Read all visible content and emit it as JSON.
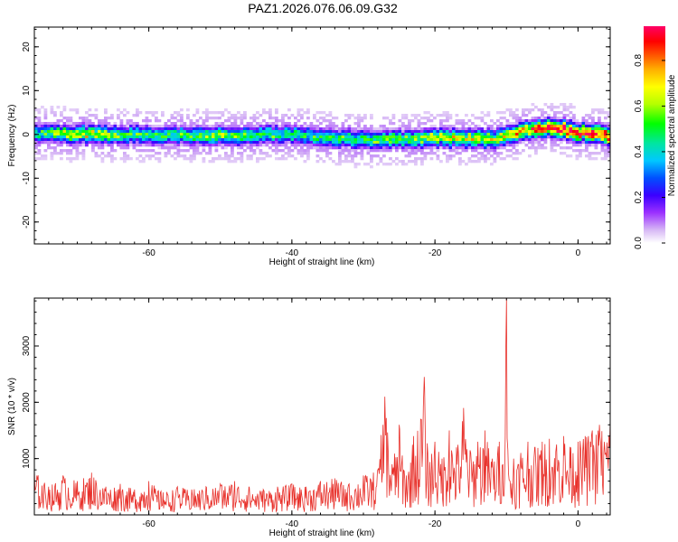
{
  "figure_title": "PAZ1.2026.076.06.09.G32",
  "chart_data": [
    {
      "type": "heatmap",
      "title": "",
      "xlabel": "Height of straight line (km)",
      "ylabel": "Frequency (Hz)",
      "xlim": [
        -76,
        4.5
      ],
      "ylim": [
        -25,
        24.5
      ],
      "xticks": [
        -60,
        -40,
        -20,
        0
      ],
      "yticks": [
        -20,
        -10,
        0,
        10,
        20
      ],
      "colorbar": {
        "label": "Normalized spectral amplitude",
        "range": [
          0,
          0.95
        ],
        "ticks": [
          0.0,
          0.2,
          0.4,
          0.6,
          0.8
        ],
        "tick_labels": [
          "0.0",
          "0.2",
          "0.4",
          "0.6",
          "0.8"
        ],
        "colors": [
          "#ffffff",
          "#d7b8f5",
          "#9b30ff",
          "#3a00ff",
          "#0050ff",
          "#00c8ff",
          "#00e6a0",
          "#00ff00",
          "#b4ff00",
          "#ffff00",
          "#ffb000",
          "#ff5000",
          "#ff0000",
          "#ff0066"
        ]
      },
      "ridge": {
        "description_points_x": [
          -76,
          -70,
          -60,
          -50,
          -40,
          -30,
          -20,
          -12,
          -8,
          -4,
          0,
          4.5
        ],
        "frequency_center": [
          0.5,
          0.3,
          0.2,
          0.0,
          0.3,
          -1.0,
          -0.5,
          -0.8,
          1.0,
          1.8,
          0.8,
          0.0
        ],
        "peak_amplitude": [
          0.45,
          0.65,
          0.45,
          0.55,
          0.45,
          0.5,
          0.6,
          0.65,
          0.7,
          0.9,
          0.85,
          0.9
        ]
      }
    },
    {
      "type": "line",
      "title": "",
      "xlabel": "Height of straight line (km)",
      "ylabel": "SNR (10 * v/v)",
      "xlim": [
        -76,
        4.5
      ],
      "ylim": [
        0,
        3850
      ],
      "xticks": [
        -60,
        -40,
        -20,
        0
      ],
      "yticks": [
        1000,
        2000,
        3000
      ],
      "series": [
        {
          "name": "SNR",
          "color": "#e8312b",
          "x": [
            -76,
            -74,
            -72,
            -70,
            -68,
            -66,
            -64,
            -62,
            -60,
            -58,
            -56,
            -54,
            -52,
            -50,
            -48,
            -46,
            -44,
            -42,
            -40,
            -38,
            -36,
            -34,
            -32,
            -30,
            -28,
            -27,
            -26,
            -25,
            -24,
            -23,
            -22,
            -21.5,
            -21,
            -20,
            -19,
            -18,
            -17,
            -16,
            -15,
            -14,
            -13,
            -12,
            -11,
            -10.5,
            -10,
            -9.5,
            -9,
            -8,
            -7,
            -6,
            -5,
            -4,
            -3,
            -2,
            -1,
            0,
            1,
            2,
            3,
            4.5
          ],
          "values": [
            800,
            500,
            700,
            600,
            750,
            500,
            550,
            450,
            600,
            400,
            500,
            450,
            500,
            550,
            600,
            500,
            450,
            500,
            550,
            500,
            600,
            650,
            550,
            700,
            800,
            2100,
            900,
            1600,
            700,
            1400,
            1700,
            2450,
            1100,
            1300,
            1000,
            1500,
            1200,
            1900,
            1100,
            1300,
            1500,
            1000,
            1300,
            900,
            3850,
            600,
            1000,
            1100,
            1300,
            1200,
            1300,
            1350,
            1250,
            1400,
            1200,
            1300,
            1400,
            1500,
            1600,
            1650
          ]
        }
      ]
    }
  ]
}
